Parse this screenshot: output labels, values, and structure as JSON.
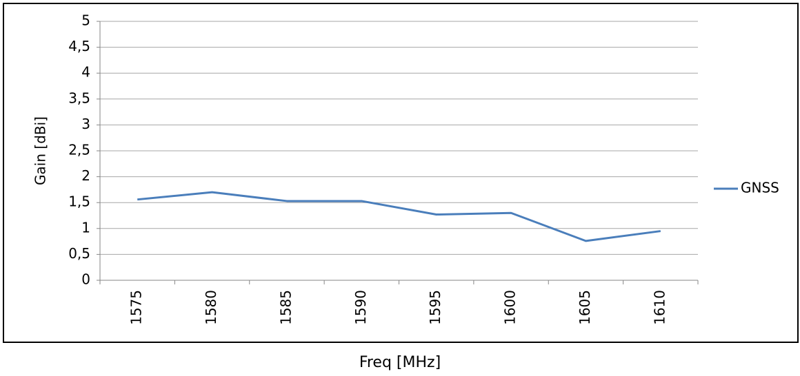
{
  "chart_data": {
    "type": "line",
    "x_label": "Freq [MHz]",
    "y_label": "Gain [dBi]",
    "categories": [
      "1575",
      "1580",
      "1585",
      "1590",
      "1595",
      "1600",
      "1605",
      "1610"
    ],
    "series": [
      {
        "name": "GNSS",
        "color": "#4a7ebb",
        "values": [
          1.56,
          1.7,
          1.53,
          1.53,
          1.27,
          1.3,
          0.76,
          0.95
        ]
      }
    ],
    "ylim": [
      0,
      5
    ],
    "yticks": [
      0,
      {
        "value": 0.5,
        "label": "0,5"
      },
      1,
      {
        "value": 1.5,
        "label": "1,5"
      },
      2,
      {
        "value": 2.5,
        "label": "2,5"
      },
      3,
      {
        "value": 3.5,
        "label": "3,5"
      },
      4,
      {
        "value": 4.5,
        "label": "4,5"
      },
      5
    ],
    "grid": true,
    "legend": "right"
  }
}
